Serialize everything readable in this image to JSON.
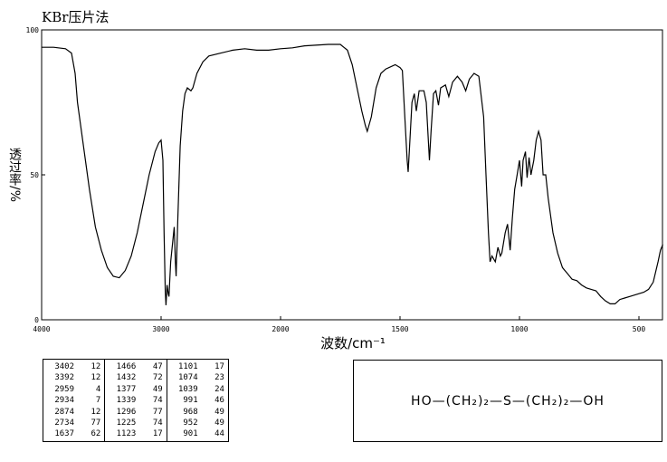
{
  "chart_data": {
    "type": "line",
    "title": "KBr压片法",
    "x_label": "波数/cm⁻¹",
    "y_label": "透过率/%",
    "xlim": [
      4000,
      400
    ],
    "xticks": [
      4000,
      3000,
      2000,
      1500,
      1000,
      500
    ],
    "ylim": [
      0,
      100
    ],
    "yticks": [
      0,
      50,
      100
    ],
    "color": "#000000",
    "x": [
      4000,
      3900,
      3800,
      3750,
      3720,
      3700,
      3650,
      3600,
      3550,
      3500,
      3450,
      3400,
      3350,
      3300,
      3250,
      3200,
      3150,
      3100,
      3050,
      3020,
      3000,
      2985,
      2975,
      2965,
      2959,
      2950,
      2940,
      2934,
      2920,
      2900,
      2890,
      2880,
      2874,
      2860,
      2840,
      2820,
      2800,
      2780,
      2750,
      2734,
      2700,
      2650,
      2600,
      2500,
      2400,
      2300,
      2200,
      2100,
      2000,
      1950,
      1900,
      1800,
      1750,
      1720,
      1700,
      1680,
      1660,
      1645,
      1637,
      1620,
      1600,
      1580,
      1560,
      1520,
      1500,
      1490,
      1480,
      1470,
      1466,
      1460,
      1450,
      1440,
      1432,
      1420,
      1400,
      1390,
      1377,
      1370,
      1360,
      1350,
      1339,
      1330,
      1310,
      1296,
      1280,
      1260,
      1240,
      1225,
      1210,
      1190,
      1170,
      1150,
      1140,
      1130,
      1123,
      1115,
      1101,
      1090,
      1080,
      1074,
      1060,
      1050,
      1039,
      1030,
      1020,
      1010,
      1000,
      991,
      985,
      975,
      968,
      960,
      952,
      940,
      930,
      920,
      910,
      901,
      890,
      880,
      860,
      840,
      820,
      800,
      780,
      760,
      740,
      720,
      700,
      680,
      660,
      640,
      620,
      600,
      580,
      560,
      540,
      520,
      500,
      480,
      460,
      440,
      420,
      410,
      400
    ],
    "values": [
      94,
      94,
      93.5,
      92,
      85,
      75,
      60,
      45,
      32,
      24,
      18,
      15,
      14.5,
      17,
      22,
      30,
      40,
      50,
      58,
      61,
      62,
      55,
      30,
      10,
      5,
      12,
      9,
      8,
      20,
      28,
      32,
      20,
      15,
      35,
      60,
      72,
      78,
      80,
      79,
      80,
      85,
      89,
      91,
      92,
      93,
      93.5,
      93,
      93,
      93.5,
      93.8,
      94.5,
      95,
      95,
      93,
      88,
      80,
      72,
      67,
      65,
      70,
      80,
      85,
      86.5,
      88,
      87,
      86,
      70,
      55,
      51,
      60,
      75,
      78,
      72,
      79,
      79,
      75,
      55,
      65,
      78,
      79,
      74,
      80,
      81,
      77,
      82,
      84,
      82,
      79,
      83,
      85,
      84,
      70,
      50,
      30,
      20,
      22,
      20,
      25,
      22,
      23,
      30,
      33,
      24,
      35,
      45,
      50,
      55,
      46,
      55,
      58,
      49,
      56,
      50,
      55,
      62,
      65,
      62,
      50,
      50,
      42,
      30,
      23,
      18,
      16,
      14,
      13.5,
      12,
      11,
      10.5,
      10,
      8,
      6.5,
      5.5,
      5.5,
      7,
      7.5,
      8,
      8.5,
      9,
      9.5,
      10.5,
      13,
      20,
      24,
      26
    ]
  },
  "table": {
    "rows": [
      [
        3402,
        12,
        1466,
        47,
        1101,
        17
      ],
      [
        3392,
        12,
        1432,
        72,
        1074,
        23
      ],
      [
        2959,
        4,
        1377,
        49,
        1039,
        24
      ],
      [
        2934,
        7,
        1339,
        74,
        991,
        46
      ],
      [
        2874,
        12,
        1296,
        77,
        968,
        49
      ],
      [
        2734,
        77,
        1225,
        74,
        952,
        49
      ],
      [
        1637,
        62,
        1123,
        17,
        901,
        44
      ]
    ]
  },
  "formula": "HO—(CH₂)₂—S—(CH₂)₂—OH"
}
